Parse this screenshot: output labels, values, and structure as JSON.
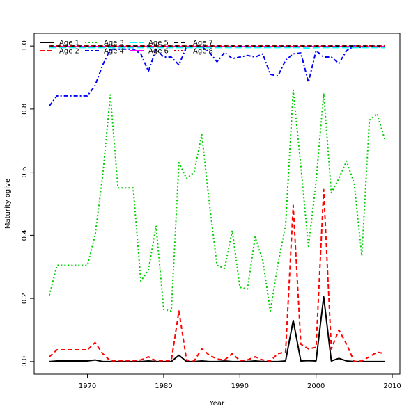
{
  "chart_data": {
    "type": "line",
    "xlabel": "Year",
    "ylabel": "Maturity ogive",
    "xlim": [
      1963,
      2011
    ],
    "ylim": [
      -0.04,
      1.04
    ],
    "x_ticks": [
      1970,
      1980,
      1990,
      2000,
      2010
    ],
    "y_ticks": [
      0.0,
      0.2,
      0.4,
      0.6,
      0.8,
      1.0
    ],
    "x_tick_labels": [
      "1970",
      "1980",
      "1990",
      "2000",
      "2010"
    ],
    "y_tick_labels": [
      "0.0",
      "0.2",
      "0.4",
      "0.6",
      "0.8",
      "1.0"
    ],
    "grid": false,
    "legend": "top-left, 4 columns, no frame",
    "x": [
      1965,
      1966,
      1967,
      1968,
      1969,
      1970,
      1971,
      1972,
      1973,
      1974,
      1975,
      1976,
      1977,
      1978,
      1979,
      1980,
      1981,
      1982,
      1983,
      1984,
      1985,
      1986,
      1987,
      1988,
      1989,
      1990,
      1991,
      1992,
      1993,
      1994,
      1995,
      1996,
      1997,
      1998,
      1999,
      2000,
      2001,
      2002,
      2003,
      2004,
      2005,
      2006,
      2007,
      2008,
      2009
    ],
    "series": [
      {
        "name": "Age 1",
        "color": "#000000",
        "dash": "solid",
        "values": [
          0.0,
          0.002,
          0.002,
          0.002,
          0.002,
          0.002,
          0.005,
          0.0,
          0.0,
          0.0,
          0.0,
          0.0,
          0.0,
          0.002,
          0.0,
          0.0,
          0.0,
          0.02,
          0.0,
          0.0,
          0.002,
          0.0,
          0.0,
          0.002,
          0.0,
          0.0,
          0.0,
          0.002,
          0.0,
          0.0,
          0.0,
          0.002,
          0.13,
          0.002,
          0.003,
          0.002,
          0.205,
          0.002,
          0.01,
          0.002,
          0.0,
          0.0,
          0.0,
          0.0,
          0.0
        ]
      },
      {
        "name": "Age 2",
        "color": "#ff0000",
        "dash": "dashed",
        "values": [
          0.015,
          0.037,
          0.037,
          0.037,
          0.037,
          0.037,
          0.06,
          0.025,
          0.002,
          0.003,
          0.003,
          0.003,
          0.005,
          0.015,
          0.002,
          0.003,
          0.003,
          0.16,
          0.005,
          0.002,
          0.04,
          0.02,
          0.008,
          0.005,
          0.025,
          0.003,
          0.005,
          0.015,
          0.005,
          0.002,
          0.025,
          0.03,
          0.495,
          0.055,
          0.04,
          0.045,
          0.545,
          0.04,
          0.1,
          0.055,
          0.0,
          0.002,
          0.015,
          0.03,
          0.025
        ]
      },
      {
        "name": "Age 3",
        "color": "#00cd00",
        "dash": "dotted",
        "values": [
          0.21,
          0.305,
          0.305,
          0.305,
          0.305,
          0.305,
          0.4,
          0.59,
          0.845,
          0.55,
          0.55,
          0.55,
          0.255,
          0.29,
          0.43,
          0.165,
          0.16,
          0.63,
          0.58,
          0.6,
          0.72,
          0.5,
          0.305,
          0.295,
          0.415,
          0.235,
          0.23,
          0.395,
          0.32,
          0.16,
          0.31,
          0.43,
          0.86,
          0.62,
          0.365,
          0.57,
          0.85,
          0.535,
          0.58,
          0.635,
          0.565,
          0.335,
          0.765,
          0.785,
          0.705
        ]
      },
      {
        "name": "Age 4",
        "color": "#0000ff",
        "dash": "dashdot",
        "values": [
          0.81,
          0.842,
          0.842,
          0.842,
          0.842,
          0.842,
          0.875,
          0.94,
          0.99,
          0.99,
          0.99,
          0.99,
          0.975,
          0.92,
          0.99,
          0.965,
          0.965,
          0.94,
          0.998,
          0.998,
          0.998,
          0.98,
          0.95,
          0.98,
          0.96,
          0.965,
          0.97,
          0.965,
          0.975,
          0.91,
          0.905,
          0.955,
          0.975,
          0.978,
          0.885,
          0.985,
          0.965,
          0.965,
          0.945,
          0.985,
          1.0,
          0.995,
          1.0,
          0.998,
          0.995
        ]
      },
      {
        "name": "Age 5",
        "color": "#00ffff",
        "dash": "longdash",
        "values": [
          0.995,
          0.995,
          0.995,
          0.995,
          0.995,
          0.995,
          0.995,
          0.995,
          0.995,
          0.995,
          0.995,
          0.995,
          0.995,
          0.995,
          0.995,
          0.995,
          0.995,
          0.995,
          0.995,
          0.995,
          0.995,
          0.995,
          0.995,
          0.995,
          0.995,
          0.995,
          0.995,
          0.995,
          0.995,
          0.995,
          0.995,
          0.995,
          0.995,
          0.995,
          0.993,
          0.995,
          0.995,
          0.995,
          0.995,
          0.995,
          0.995,
          0.995,
          0.995,
          0.995,
          0.995
        ]
      },
      {
        "name": "Age 6",
        "color": "#ff00ff",
        "dash": "solid",
        "values": [
          0.998,
          0.998,
          0.998,
          0.998,
          0.998,
          0.998,
          0.998,
          0.998,
          0.998,
          0.998,
          0.998,
          0.998,
          0.998,
          0.998,
          0.998,
          0.998,
          0.998,
          0.998,
          0.998,
          0.998,
          0.998,
          0.998,
          0.998,
          0.998,
          0.998,
          0.998,
          0.998,
          0.998,
          0.998,
          0.998,
          0.998,
          0.998,
          0.998,
          0.998,
          0.998,
          0.998,
          0.998,
          0.998,
          0.998,
          0.998,
          0.998,
          0.998,
          0.998,
          0.998,
          0.998
        ]
      },
      {
        "name": "Age 7",
        "color": "#000000",
        "dash": "dashed",
        "values": [
          1.0,
          1.0,
          1.0,
          1.0,
          1.0,
          1.0,
          1.0,
          1.0,
          1.0,
          1.0,
          1.0,
          1.0,
          1.0,
          1.0,
          1.0,
          1.0,
          1.0,
          1.0,
          1.0,
          1.0,
          1.0,
          1.0,
          1.0,
          1.0,
          1.0,
          1.0,
          1.0,
          1.0,
          1.0,
          1.0,
          1.0,
          1.0,
          1.0,
          1.0,
          1.0,
          1.0,
          1.0,
          1.0,
          1.0,
          1.0,
          1.0,
          1.0,
          1.0,
          1.0,
          1.0
        ]
      },
      {
        "name": "Age 8",
        "color": "#cd0000",
        "dash": "dotted",
        "values": [
          1.0,
          1.0,
          1.0,
          1.0,
          1.0,
          1.0,
          1.0,
          1.0,
          1.0,
          1.0,
          1.0,
          1.0,
          1.0,
          1.0,
          1.0,
          1.0,
          1.0,
          1.0,
          1.0,
          1.0,
          1.0,
          1.0,
          1.0,
          1.0,
          1.0,
          1.0,
          1.0,
          1.0,
          1.0,
          1.0,
          1.0,
          1.0,
          1.0,
          1.0,
          1.0,
          1.0,
          1.0,
          1.0,
          1.0,
          1.0,
          1.0,
          1.0,
          1.0,
          1.0,
          1.0
        ]
      }
    ]
  }
}
